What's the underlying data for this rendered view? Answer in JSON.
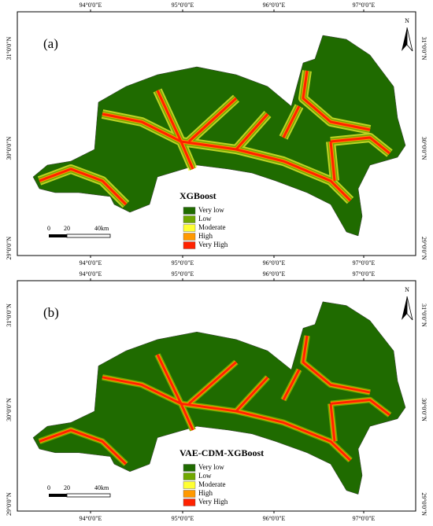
{
  "panels": [
    {
      "label": "(a)",
      "model": "XGBoost",
      "north": "N",
      "top_ticks": [
        "94°0'0\"E",
        "95°0'0\"E",
        "96°0'0\"E",
        "97°0'0\"E"
      ],
      "bottom_ticks": [
        "94°0'0\"E",
        "95°0'0\"E",
        "96°0'0\"E",
        "97°0'0\"E"
      ],
      "left_ticks": [
        "31°0'0\"N",
        "30°0'0\"N",
        "29°0'0\"N"
      ],
      "right_ticks": [
        "31°0'0\"N",
        "30°0'0\"N",
        "29°0'0\"N"
      ],
      "scale": [
        "0",
        "20",
        "40km"
      ],
      "legend": [
        {
          "label": "Very low",
          "color": "#1f6b00"
        },
        {
          "label": "Low",
          "color": "#70a800"
        },
        {
          "label": "Moderate",
          "color": "#ffff33"
        },
        {
          "label": "High",
          "color": "#ff9900"
        },
        {
          "label": "Very High",
          "color": "#ff2200"
        }
      ]
    },
    {
      "label": "(b)",
      "model": "VAE-CDM-XGBoost",
      "north": "N",
      "top_ticks": [
        "94°0'0\"E",
        "95°0'0\"E",
        "96°0'0\"E",
        "97°0'0\"E"
      ],
      "bottom_ticks": [
        "94°0'0\"E",
        "95°0'0\"E",
        "96°0'0\"E",
        "97°0'0\"E"
      ],
      "left_ticks": [
        "31°0'0\"N",
        "30°0'0\"N",
        "29°0'0\"N"
      ],
      "right_ticks": [
        "31°0'0\"N",
        "30°0'0\"N",
        "29°0'0\"N"
      ],
      "scale": [
        "0",
        "20",
        "40km"
      ],
      "legend": [
        {
          "label": "Very low",
          "color": "#1f6b00"
        },
        {
          "label": "Low",
          "color": "#70a800"
        },
        {
          "label": "Moderate",
          "color": "#ffff33"
        },
        {
          "label": "High",
          "color": "#ff9900"
        },
        {
          "label": "Very High",
          "color": "#ff2200"
        }
      ]
    }
  ]
}
